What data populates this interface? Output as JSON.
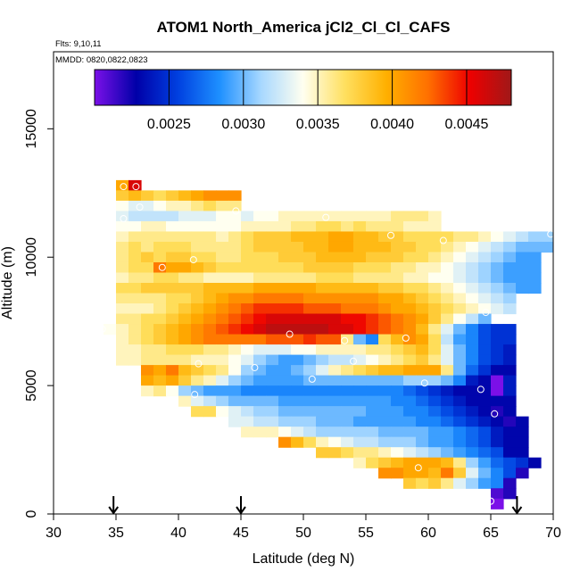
{
  "chart_data": {
    "type": "heatmap",
    "title": "ATOM1 North_America jCl2_Cl_Cl_CAFS",
    "flights_label": "Flts: 9,10,11",
    "dates_label": "MMDD: 0820,0822,0823",
    "xlabel": "Latitude (deg N)",
    "ylabel": "Altitude (m)",
    "xlim": [
      30,
      70
    ],
    "ylim": [
      0,
      18000
    ],
    "xticks": [
      "30",
      "35",
      "40",
      "45",
      "50",
      "55",
      "60",
      "65",
      "70"
    ],
    "yticks": [
      "0",
      "5000",
      "10000",
      "15000"
    ],
    "colorbar": {
      "min": 0.002,
      "max": 0.0048,
      "ticks": [
        "0.0025",
        "0.0030",
        "0.0035",
        "0.0040",
        "0.0045"
      ],
      "tick_values": [
        0.0025,
        0.003,
        0.0035,
        0.004,
        0.0045
      ],
      "colors": [
        "#7b10e8",
        "#0000a8",
        "#0040e0",
        "#1e90ff",
        "#a8d8ff",
        "#fffff0",
        "#ffe060",
        "#ffb000",
        "#ff7000",
        "#ee0000",
        "#a01818"
      ]
    },
    "cell_size": {
      "lat": 1.0,
      "alt": 400
    },
    "rows": [
      {
        "alt": 12800,
        "lat_start": 35.0,
        "values": [
          0.004,
          0.0046
        ]
      },
      {
        "alt": 12400,
        "lat_start": 35.0,
        "values": [
          0.0038,
          0.0039,
          0.0038,
          0.0037,
          0.0038,
          0.0039,
          0.004,
          0.0041,
          0.0041,
          0.0041
        ]
      },
      {
        "alt": 12000,
        "lat_start": 35.0,
        "values": [
          0.0034,
          0.0033,
          0.0033,
          0.0034,
          0.0035,
          0.0035,
          0.0036,
          0.0037,
          0.0036,
          0.0036
        ]
      },
      {
        "alt": 11600,
        "lat_start": 35.0,
        "values": [
          0.0033,
          0.0032,
          0.0032,
          0.0032,
          0.0032,
          0.0033,
          0.0033,
          0.0033,
          0.0034,
          0.0034,
          0.0033,
          0.0034,
          0.0034,
          0.0035,
          0.0035,
          0.0035,
          0.0035,
          0.0035,
          0.0035,
          0.0035,
          0.0035,
          0.0035,
          0.0036,
          0.0036,
          0.0036,
          0.0035
        ]
      },
      {
        "alt": 11200,
        "lat_start": 35.0,
        "values": [
          0.0034,
          0.0034,
          0.0035,
          0.0035,
          0.0034,
          0.0034,
          0.0034,
          0.0034,
          0.0034,
          0.0034,
          0.0035,
          0.0035,
          0.0035,
          0.0035,
          0.0036,
          0.0036,
          0.0037,
          0.0037,
          0.0036,
          0.0037,
          0.0036,
          0.0036,
          0.0036,
          0.0035,
          0.0035,
          0.0035
        ]
      },
      {
        "alt": 10800,
        "lat_start": 35.0,
        "values": [
          0.0035,
          0.0036,
          0.0036,
          0.0036,
          0.0036,
          0.0036,
          0.0036,
          0.0036,
          0.0035,
          0.0036,
          0.0037,
          0.0038,
          0.0038,
          0.0038,
          0.0039,
          0.0039,
          0.0039,
          0.004,
          0.004,
          0.0039,
          0.0039,
          0.0038,
          0.0038,
          0.0037,
          0.0037,
          0.0037,
          0.0037,
          0.0036,
          0.0036,
          0.0035,
          0.0034,
          0.0033,
          0.0032,
          0.0031,
          0.0031,
          0.003
        ]
      },
      {
        "alt": 10400,
        "lat_start": 35.0,
        "values": [
          0.0036,
          0.0037,
          0.0036,
          0.0037,
          0.0037,
          0.0037,
          0.0036,
          0.0036,
          0.0036,
          0.0036,
          0.0037,
          0.0038,
          0.0038,
          0.0038,
          0.0038,
          0.0039,
          0.0039,
          0.004,
          0.004,
          0.0039,
          0.0039,
          0.0039,
          0.0038,
          0.0038,
          0.0037,
          0.0037,
          0.0036,
          0.0035,
          0.0034,
          0.0033,
          0.0032,
          0.0031,
          0.003,
          0.003,
          0.003
        ]
      },
      {
        "alt": 10000,
        "lat_start": 35.0,
        "values": [
          0.0036,
          0.0037,
          0.0038,
          0.0037,
          0.0038,
          0.0038,
          0.0037,
          0.0037,
          0.0036,
          0.0036,
          0.0037,
          0.0037,
          0.0037,
          0.0038,
          0.0038,
          0.0038,
          0.0039,
          0.0039,
          0.0039,
          0.0039,
          0.0038,
          0.0038,
          0.0038,
          0.0037,
          0.0037,
          0.0036,
          0.0035,
          0.0034,
          0.0033,
          0.0032,
          0.0031,
          0.003,
          0.0029,
          0.0029
        ]
      },
      {
        "alt": 9600,
        "lat_start": 35.0,
        "values": [
          0.0036,
          0.0037,
          0.0037,
          0.0042,
          0.004,
          0.004,
          0.0039,
          0.0038,
          0.0037,
          0.0037,
          0.0037,
          0.0037,
          0.0037,
          0.0037,
          0.0037,
          0.0038,
          0.0038,
          0.0038,
          0.0038,
          0.0037,
          0.0037,
          0.0037,
          0.0036,
          0.0036,
          0.0035,
          0.0035,
          0.0034,
          0.0033,
          0.0032,
          0.0031,
          0.003,
          0.0029,
          0.0029,
          0.0029
        ]
      },
      {
        "alt": 9200,
        "lat_start": 35.0,
        "values": [
          0.0035,
          0.0036,
          0.0036,
          0.0037,
          0.0037,
          0.0036,
          0.0036,
          0.0035,
          0.0035,
          0.0035,
          0.0035,
          0.0036,
          0.0036,
          0.0036,
          0.0036,
          0.0036,
          0.0037,
          0.0037,
          0.0037,
          0.0036,
          0.0036,
          0.0036,
          0.0036,
          0.0035,
          0.0035,
          0.0034,
          0.0034,
          0.0033,
          0.0032,
          0.0031,
          0.003,
          0.0029,
          0.0029,
          0.0029
        ]
      },
      {
        "alt": 8800,
        "lat_start": 35.0,
        "values": [
          0.0037,
          0.0037,
          0.0038,
          0.0038,
          0.0038,
          0.0038,
          0.0038,
          0.0039,
          0.0039,
          0.0039,
          0.0039,
          0.004,
          0.004,
          0.004,
          0.004,
          0.004,
          0.0039,
          0.0039,
          0.0039,
          0.0039,
          0.0039,
          0.0038,
          0.0038,
          0.0037,
          0.0037,
          0.0036,
          0.0035,
          0.0034,
          0.0033,
          0.0032,
          0.0031,
          0.003,
          0.0029,
          0.0029
        ]
      },
      {
        "alt": 8400,
        "lat_start": 35.0,
        "values": [
          0.0036,
          0.0036,
          0.0036,
          0.0036,
          0.0037,
          0.0037,
          0.0038,
          0.0039,
          0.004,
          0.0041,
          0.0041,
          0.0042,
          0.0042,
          0.0042,
          0.0042,
          0.0041,
          0.0041,
          0.0041,
          0.0041,
          0.0041,
          0.0041,
          0.004,
          0.004,
          0.0039,
          0.0038,
          0.0037,
          0.0036,
          0.0035,
          0.0034,
          0.0033,
          0.0032,
          0.0031
        ]
      },
      {
        "alt": 8000,
        "lat_start": 35.0,
        "values": [
          0.0035,
          0.0035,
          0.0035,
          0.0036,
          0.0037,
          0.0038,
          0.0039,
          0.004,
          0.0041,
          0.0042,
          0.0043,
          0.0044,
          0.0044,
          0.0044,
          0.0044,
          0.0043,
          0.0043,
          0.0043,
          0.0042,
          0.0042,
          0.0042,
          0.0041,
          0.004,
          0.004,
          0.0039,
          0.0038,
          0.0037,
          0.0036,
          0.0035,
          0.0034,
          0.0033,
          0.0032
        ]
      },
      {
        "alt": 7600,
        "lat_start": 35.0,
        "values": [
          0.0036,
          0.0036,
          0.0037,
          0.0037,
          0.0038,
          0.0039,
          0.004,
          0.0041,
          0.0042,
          0.0043,
          0.0044,
          0.0045,
          0.0046,
          0.0046,
          0.0046,
          0.0046,
          0.0046,
          0.0046,
          0.0045,
          0.0045,
          0.0044,
          0.0043,
          0.0042,
          0.0041,
          0.004,
          0.0038,
          0.0036,
          0.0034,
          0.0032,
          0.003
        ]
      },
      {
        "alt": 7200,
        "lat_start": 34.0,
        "values": [
          0.0034,
          0.0035,
          0.0036,
          0.0037,
          0.0038,
          0.0039,
          0.004,
          0.0041,
          0.0042,
          0.0043,
          0.0044,
          0.0045,
          0.0046,
          0.0047,
          0.0047,
          0.0047,
          0.0047,
          0.0047,
          0.0046,
          0.0046,
          0.0045,
          0.0044,
          0.0043,
          0.0042,
          0.0041,
          0.0039,
          0.0036,
          0.0033,
          0.003,
          0.0028,
          0.0026,
          0.0025,
          0.0025
        ]
      },
      {
        "alt": 6800,
        "lat_start": 35.0,
        "values": [
          0.0035,
          0.0036,
          0.0037,
          0.0038,
          0.0039,
          0.004,
          0.0041,
          0.0042,
          0.0042,
          0.0042,
          0.0042,
          0.0042,
          0.0043,
          0.0043,
          0.0043,
          0.0044,
          0.0043,
          0.0043,
          0.0036,
          0.003,
          0.0028,
          0.0037,
          0.0039,
          0.0041,
          0.004,
          0.0037,
          0.0032,
          0.0029,
          0.0028,
          0.0026,
          0.0025,
          0.0025
        ]
      },
      {
        "alt": 6400,
        "lat_start": 35.0,
        "values": [
          0.0035,
          0.0035,
          0.0036,
          0.0036,
          0.0037,
          0.0037,
          0.0037,
          0.0036,
          0.0036,
          0.0035,
          0.0034,
          0.0033,
          0.0033,
          0.0033,
          0.0034,
          0.0034,
          0.0035,
          0.0035,
          0.0035,
          0.0035,
          0.0036,
          0.0036,
          0.0037,
          0.0038,
          0.0039,
          0.0037,
          0.0033,
          0.003,
          0.0028,
          0.0026,
          0.0025,
          0.0024
        ]
      },
      {
        "alt": 6000,
        "lat_start": 35.0,
        "values": [
          0.0035,
          0.0035,
          0.0036,
          0.0036,
          0.0036,
          0.0036,
          0.0035,
          0.0035,
          0.0035,
          0.0034,
          0.0033,
          0.0031,
          0.003,
          0.0029,
          0.0029,
          0.003,
          0.0031,
          0.0032,
          0.0032,
          0.0033,
          0.0034,
          0.0035,
          0.0036,
          0.0037,
          0.0038,
          0.0036,
          0.0033,
          0.003,
          0.0028,
          0.0026,
          0.0025,
          0.0024
        ]
      },
      {
        "alt": 5600,
        "lat_start": 37.0,
        "values": [
          0.0041,
          0.004,
          0.0042,
          0.0039,
          0.0038,
          0.0037,
          0.0036,
          0.0034,
          0.0031,
          0.003,
          0.0029,
          0.0029,
          0.003,
          0.0031,
          0.0033,
          0.0035,
          0.0036,
          0.0037,
          0.0038,
          0.0039,
          0.0039,
          0.004,
          0.004,
          0.004,
          0.0036,
          0.003,
          0.0027,
          0.0025,
          0.0023,
          0.0023
        ]
      },
      {
        "alt": 5200,
        "lat_start": 37.0,
        "values": [
          0.004,
          0.0039,
          0.004,
          0.0038,
          0.0036,
          0.0035,
          0.0033,
          0.0031,
          0.003,
          0.0029,
          0.0029,
          0.0029,
          0.0029,
          0.003,
          0.003,
          0.003,
          0.003,
          0.003,
          0.003,
          0.003,
          0.003,
          0.0031,
          0.0031,
          0.0031,
          0.003,
          0.0028,
          0.0024,
          0.0023,
          0.002,
          0.0024
        ]
      },
      {
        "alt": 4800,
        "lat_start": 37.0,
        "values": [
          0.0035,
          0.0036,
          0.0034,
          0.0031,
          0.003,
          0.0029,
          0.0029,
          0.0029,
          0.0028,
          0.0028,
          0.0028,
          0.0028,
          0.0028,
          0.0028,
          0.0028,
          0.0028,
          0.0028,
          0.0028,
          0.0028,
          0.0028,
          0.0028,
          0.0027,
          0.0026,
          0.0025,
          0.0024,
          0.0023,
          0.0023,
          0.0023,
          0.002,
          0.0024
        ]
      },
      {
        "alt": 4400,
        "lat_start": 40.0,
        "values": [
          0.0035,
          0.0033,
          0.0032,
          0.0031,
          0.003,
          0.003,
          0.003,
          0.003,
          0.0029,
          0.0029,
          0.0029,
          0.0029,
          0.0029,
          0.0029,
          0.0029,
          0.0029,
          0.0029,
          0.0028,
          0.0028,
          0.0027,
          0.0026,
          0.0025,
          0.0024,
          0.0023,
          0.0023,
          0.0023,
          0.0023
        ]
      },
      {
        "alt": 4000,
        "lat_start": 41.0,
        "values": [
          0.0037,
          0.0037,
          0.0034,
          0.0033,
          0.0032,
          0.0031,
          0.0031,
          0.003,
          0.003,
          0.003,
          0.003,
          0.003,
          0.003,
          0.003,
          0.0029,
          0.0029,
          0.0029,
          0.0028,
          0.0028,
          0.0027,
          0.0026,
          0.0025,
          0.0024,
          0.0023,
          0.0022,
          0.0023
        ]
      },
      {
        "alt": 3600,
        "lat_start": 44.0,
        "values": [
          0.0033,
          0.0033,
          0.0032,
          0.0032,
          0.0031,
          0.0031,
          0.0031,
          0.003,
          0.003,
          0.003,
          0.0029,
          0.0029,
          0.0029,
          0.0029,
          0.0029,
          0.0028,
          0.0028,
          0.0027,
          0.0026,
          0.0025,
          0.0024,
          0.0023,
          0.0022,
          0.0023
        ]
      },
      {
        "alt": 3200,
        "lat_start": 45.0,
        "values": [
          0.0035,
          0.0035,
          0.0035,
          0.0034,
          0.0033,
          0.0032,
          0.0031,
          0.0031,
          0.0031,
          0.0031,
          0.0031,
          0.003,
          0.003,
          0.003,
          0.003,
          0.0029,
          0.0029,
          0.0028,
          0.0027,
          0.0026,
          0.0024,
          0.0023,
          0.0023
        ]
      },
      {
        "alt": 2800,
        "lat_start": 48.0,
        "values": [
          0.0041,
          0.0039,
          0.0037,
          0.0035,
          0.0034,
          0.0033,
          0.0032,
          0.0032,
          0.0031,
          0.0031,
          0.0031,
          0.003,
          0.0029,
          0.0029,
          0.0028,
          0.0027,
          0.0026,
          0.0024,
          0.0023,
          0.0023
        ]
      },
      {
        "alt": 2400,
        "lat_start": 51.0,
        "values": [
          0.0038,
          0.0038,
          0.0037,
          0.0036,
          0.0036,
          0.0035,
          0.0034,
          0.0033,
          0.0032,
          0.0031,
          0.003,
          0.0029,
          0.0028,
          0.0027,
          0.0026,
          0.0023,
          0.0023
        ]
      },
      {
        "alt": 2000,
        "lat_start": 54.0,
        "values": [
          0.0035,
          0.0037,
          0.0038,
          0.0039,
          0.004,
          0.004,
          0.004,
          0.0039,
          0.0036,
          0.0031,
          0.0029,
          0.0027,
          0.0026,
          0.0025,
          0.0023
        ]
      },
      {
        "alt": 1600,
        "lat_start": 56.0,
        "values": [
          0.0041,
          0.0041,
          0.004,
          0.004,
          0.0039,
          0.0042,
          0.0038,
          0.0033,
          0.003,
          0.0028,
          0.0026,
          0.0022
        ]
      },
      {
        "alt": 1200,
        "lat_start": 58.0,
        "values": [
          0.0038,
          0.0037,
          0.0038,
          0.0036,
          0.0033,
          0.0031,
          0.0029,
          0.0028,
          0.0022
        ]
      },
      {
        "alt": 800,
        "lat_start": 65.0,
        "values": [
          0.0021,
          0.0022
        ]
      },
      {
        "alt": 400,
        "lat_start": 65.0,
        "values": [
          0.002
        ]
      }
    ],
    "circles": [
      [
        35.6,
        12750
      ],
      [
        36.6,
        12750
      ],
      [
        36.9,
        11950
      ],
      [
        35.6,
        11500
      ],
      [
        44.6,
        11800
      ],
      [
        51.8,
        11550
      ],
      [
        57.0,
        10850
      ],
      [
        61.2,
        10650
      ],
      [
        69.8,
        10900
      ],
      [
        41.2,
        9900
      ],
      [
        38.7,
        9600
      ],
      [
        33.9,
        7200
      ],
      [
        48.9,
        7000
      ],
      [
        53.3,
        6750
      ],
      [
        58.2,
        6850
      ],
      [
        64.6,
        7850
      ],
      [
        41.6,
        5850
      ],
      [
        46.1,
        5700
      ],
      [
        54.0,
        5950
      ],
      [
        50.7,
        5250
      ],
      [
        59.7,
        5100
      ],
      [
        64.2,
        4850
      ],
      [
        41.3,
        4650
      ],
      [
        65.3,
        3900
      ],
      [
        59.2,
        1800
      ],
      [
        65.0,
        500
      ]
    ],
    "arrows": [
      34.8,
      45.0,
      67.1
    ]
  }
}
